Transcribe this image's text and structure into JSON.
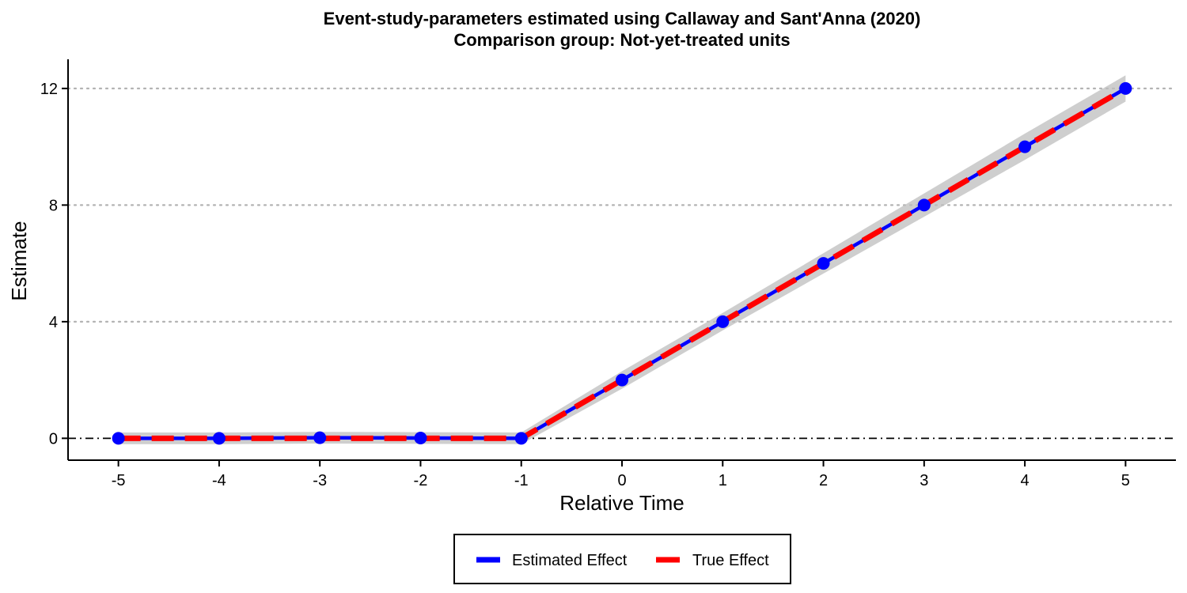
{
  "chart_data": {
    "type": "line",
    "title": "Event-study-parameters estimated using Callaway and Sant'Anna (2020)",
    "subtitle": "Comparison group: Not-yet-treated units",
    "xlabel": "Relative Time",
    "ylabel": "Estimate",
    "x": [
      -5,
      -4,
      -3,
      -2,
      -1,
      0,
      1,
      2,
      3,
      4,
      5
    ],
    "x_ticks": [
      "-5",
      "-4",
      "-3",
      "-2",
      "-1",
      "0",
      "1",
      "2",
      "3",
      "4",
      "5"
    ],
    "y_ticks": [
      "0",
      "4",
      "8",
      "12"
    ],
    "xlim": [
      -5.5,
      5.5
    ],
    "ylim": [
      -0.75,
      13
    ],
    "grid": "horizontal-dotted",
    "reference_line_y": 0,
    "series": [
      {
        "name": "Estimated Effect",
        "color": "#0000ff",
        "style": "solid-with-points",
        "values": [
          0,
          0,
          0.02,
          0.01,
          0,
          2,
          4,
          6,
          8,
          10,
          12
        ],
        "ci_lower": [
          -0.2,
          -0.2,
          -0.18,
          -0.19,
          -0.2,
          1.7,
          3.7,
          5.65,
          7.6,
          9.55,
          11.55
        ],
        "ci_upper": [
          0.2,
          0.2,
          0.22,
          0.21,
          0.2,
          2.3,
          4.3,
          6.35,
          8.4,
          10.45,
          12.45
        ]
      },
      {
        "name": "True Effect",
        "color": "#ff0000",
        "style": "dashed",
        "values": [
          0,
          0,
          0,
          0,
          0,
          2,
          4,
          6,
          8,
          10,
          12
        ]
      }
    ],
    "legend": {
      "position": "bottom",
      "entries": [
        "Estimated Effect",
        "True Effect"
      ]
    }
  }
}
